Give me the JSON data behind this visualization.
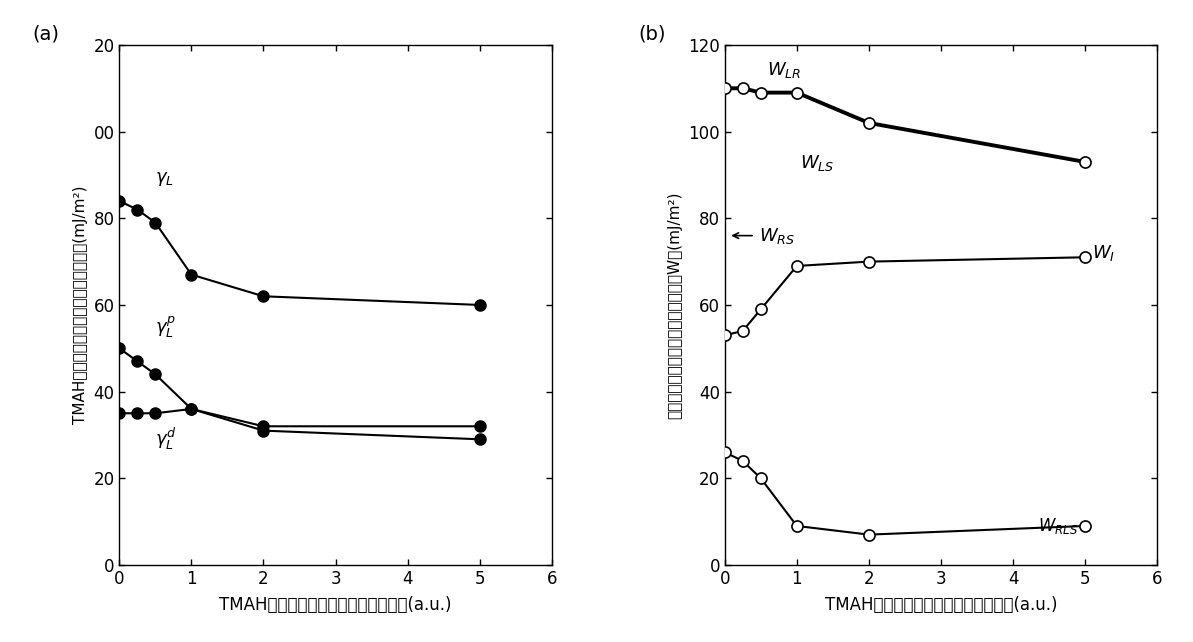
{
  "a_x": [
    0,
    0.25,
    0.5,
    1,
    2,
    5
  ],
  "a_gammaL": [
    84,
    82,
    79,
    67,
    62,
    60
  ],
  "a_gammaLp": [
    50,
    47,
    44,
    36,
    32,
    32
  ],
  "a_gammaLd": [
    35,
    35,
    35,
    36,
    31,
    29
  ],
  "b_x": [
    0,
    0.25,
    0.5,
    1,
    2,
    5
  ],
  "b_WLR": [
    110,
    110,
    109,
    109,
    102,
    93
  ],
  "b_WRS": [
    53,
    54,
    59,
    69,
    70,
    71
  ],
  "b_WRLS": [
    26,
    24,
    20,
    9,
    7,
    9
  ],
  "a_xlabel": "TMAH水溶液中へ高分子膜の溶解濃度(a.u.)",
  "a_ylabel_jp": "TMAH水溶液の表面エネルギーと成分",
  "a_ylabel_unit": "(mJ/m²)",
  "b_xlabel": "TMAH水溶液中へ高分子膜の溶解濃度(a.u.)",
  "b_ylabel_jp": "高分子膜と基板との付着エネルギーW",
  "b_ylabel_unit": "(mJ/m²)",
  "a_ytick_labels": [
    "0",
    "20",
    "40",
    "60",
    "80",
    "00",
    "20"
  ],
  "b_ytick_labels": [
    "0",
    "20",
    "40",
    "60",
    "80",
    "100",
    "120"
  ],
  "panel_a": "(a)",
  "panel_b": "(b)"
}
